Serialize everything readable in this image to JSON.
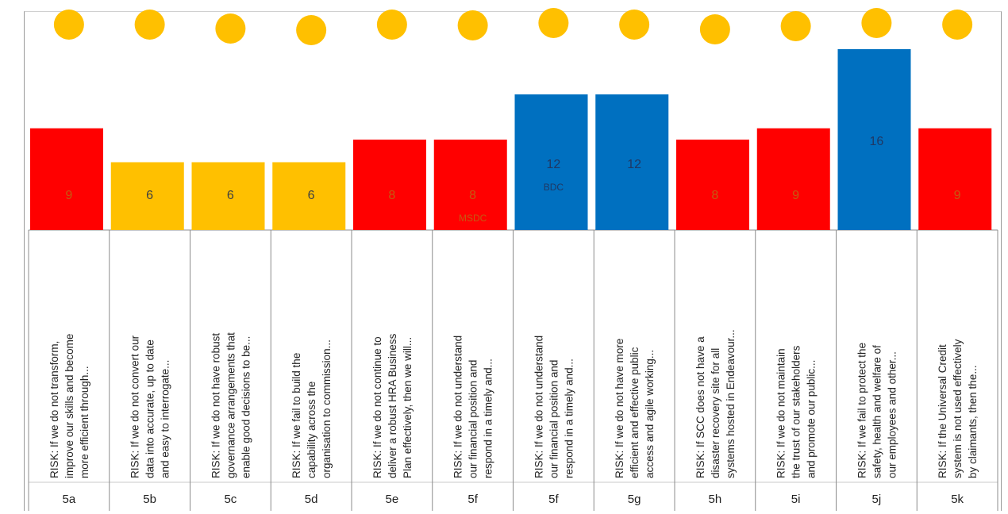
{
  "chart_data": {
    "type": "bar",
    "ylim": [
      0,
      18
    ],
    "colors": {
      "red": "#ff0000",
      "amber": "#ffc000",
      "blue": "#0070c0",
      "dot": "#ffc000"
    },
    "bars": [
      {
        "code": "5a",
        "value": 9,
        "value_label": "9",
        "sub_label": "",
        "color": "#ff0000",
        "value_text_color": "#c55a11",
        "risk_lines": [
          "RISK:  If we do not transform,",
          "improve our skills and become",
          "more efficient through..."
        ]
      },
      {
        "code": "5b",
        "value": 6,
        "value_label": "6",
        "sub_label": "",
        "color": "#ffc000",
        "value_text_color": "#404040",
        "risk_lines": [
          "RISK: If we do not convert our",
          "data into accurate, up to date",
          "and easy to interrogate..."
        ]
      },
      {
        "code": "5c",
        "value": 6,
        "value_label": "6",
        "sub_label": "",
        "color": "#ffc000",
        "value_text_color": "#404040",
        "risk_lines": [
          "RISK: If we do not have robust",
          "governance arrangements that",
          "enable good decisions to be..."
        ]
      },
      {
        "code": "5d",
        "value": 6,
        "value_label": "6",
        "sub_label": "",
        "color": "#ffc000",
        "value_text_color": "#404040",
        "risk_lines": [
          "RISK: If we fail to build the",
          "capability across the",
          "organisation to commission..."
        ]
      },
      {
        "code": "5e",
        "value": 8,
        "value_label": "8",
        "sub_label": "",
        "color": "#ff0000",
        "value_text_color": "#c55a11",
        "risk_lines": [
          "RISK:  If we do not continue to",
          "deliver a robust HRA Business",
          "Plan effectively, then we will..."
        ]
      },
      {
        "code": "5f",
        "value": 8,
        "value_label": "8",
        "sub_label": "MSDC",
        "color": "#ff0000",
        "value_text_color": "#c55a11",
        "risk_lines": [
          "RISK:  If we do not understand",
          "our financial position and",
          "respond in a timely and..."
        ]
      },
      {
        "code": "5f",
        "value": 12,
        "value_label": "12",
        "sub_label": "BDC",
        "color": "#0070c0",
        "value_text_color": "#1f3864",
        "risk_lines": [
          "RISK:  If we do not understand",
          "our financial position and",
          "respond in a timely and..."
        ]
      },
      {
        "code": "5g",
        "value": 12,
        "value_label": "12",
        "sub_label": "",
        "color": "#0070c0",
        "value_text_color": "#1f3864",
        "risk_lines": [
          "RISK: If we do not have more",
          "efficient and effective public",
          "access and agile working..."
        ]
      },
      {
        "code": "5h",
        "value": 8,
        "value_label": "8",
        "sub_label": "",
        "color": "#ff0000",
        "value_text_color": "#c55a11",
        "risk_lines": [
          "RISK: If SCC does not have a",
          "disaster recovery site for all",
          "systems hosted in Endeavour..."
        ]
      },
      {
        "code": "5i",
        "value": 9,
        "value_label": "9",
        "sub_label": "",
        "color": "#ff0000",
        "value_text_color": "#c55a11",
        "risk_lines": [
          "RISK:  If we do not maintain",
          "the trust of our stakeholders",
          "and promote our public..."
        ]
      },
      {
        "code": "5j",
        "value": 16,
        "value_label": "16",
        "sub_label": "",
        "color": "#0070c0",
        "value_text_color": "#1f3864",
        "risk_lines": [
          "RISK: If we fail to protect the",
          "safety, health and welfare of",
          "our employees and other..."
        ]
      },
      {
        "code": "5k",
        "value": 9,
        "value_label": "9",
        "sub_label": "",
        "color": "#ff0000",
        "value_text_color": "#c55a11",
        "risk_lines": [
          "RISK: If the Universal Credit",
          "system is not used effectively",
          "by claimants, then the..."
        ]
      }
    ]
  }
}
